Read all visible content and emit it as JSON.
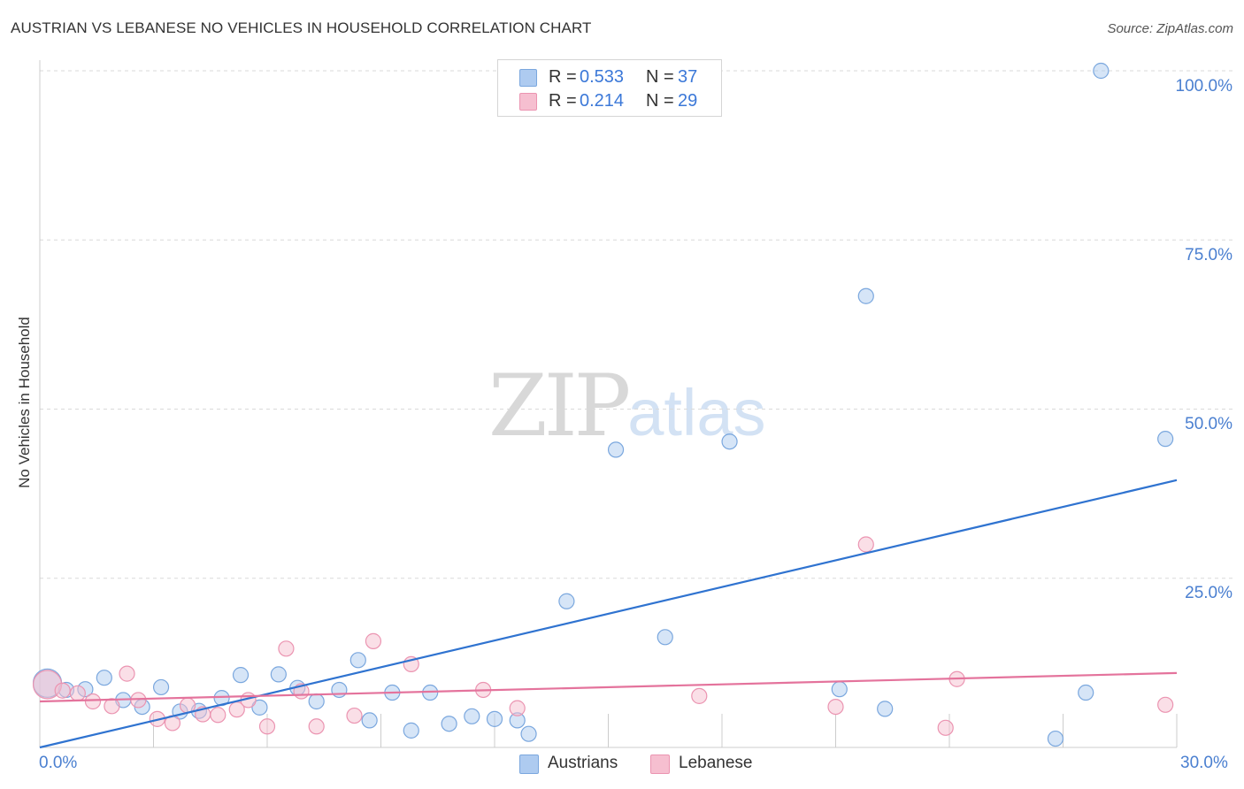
{
  "header": {
    "title": "AUSTRIAN VS LEBANESE NO VEHICLES IN HOUSEHOLD CORRELATION CHART",
    "source": "Source: ZipAtlas.com"
  },
  "watermark": {
    "zip": "ZIP",
    "atlas": "atlas"
  },
  "colors": {
    "austrians_fill": "#aecbf0",
    "austrians_stroke": "#7aa7de",
    "austrians_line": "#2f73d0",
    "lebanese_fill": "#f6bfd0",
    "lebanese_stroke": "#eb94b1",
    "lebanese_line": "#e4739c",
    "grid": "#d9d9d9",
    "tick_text": "#4a7fd0"
  },
  "legend_top": [
    {
      "r_label": "R =",
      "r_value": "0.533",
      "n_label": "N =",
      "n_value": "37"
    },
    {
      "r_label": "R =",
      "r_value": "0.214",
      "n_label": "N =",
      "n_value": "29"
    }
  ],
  "chart_data": {
    "type": "scatter",
    "title": "AUSTRIAN VS LEBANESE NO VEHICLES IN HOUSEHOLD CORRELATION CHART",
    "xlabel": "",
    "ylabel": "No Vehicles in Household",
    "xlim": [
      0,
      30
    ],
    "ylim": [
      0,
      100
    ],
    "x_tick_labels": [
      "0.0%",
      "30.0%"
    ],
    "y_ticks": [
      25,
      50,
      75,
      100
    ],
    "y_tick_labels": [
      "25.0%",
      "50.0%",
      "75.0%",
      "100.0%"
    ],
    "grid": true,
    "legend": "bottom-center",
    "series": [
      {
        "name": "Austrians",
        "r": 0.533,
        "n": 37,
        "trend": {
          "x": [
            0,
            30
          ],
          "y": [
            0,
            39.5
          ]
        },
        "points": [
          {
            "x": 0.2,
            "y": 9.5,
            "big": true
          },
          {
            "x": 0.7,
            "y": 8.5
          },
          {
            "x": 1.2,
            "y": 8.6
          },
          {
            "x": 1.7,
            "y": 10.3
          },
          {
            "x": 2.2,
            "y": 7.0
          },
          {
            "x": 2.7,
            "y": 6.0
          },
          {
            "x": 3.2,
            "y": 8.9
          },
          {
            "x": 3.7,
            "y": 5.3
          },
          {
            "x": 4.2,
            "y": 5.4
          },
          {
            "x": 4.8,
            "y": 7.3
          },
          {
            "x": 5.3,
            "y": 10.7
          },
          {
            "x": 5.8,
            "y": 5.9
          },
          {
            "x": 6.3,
            "y": 10.8
          },
          {
            "x": 6.8,
            "y": 8.8
          },
          {
            "x": 7.3,
            "y": 6.8
          },
          {
            "x": 7.9,
            "y": 8.5
          },
          {
            "x": 8.4,
            "y": 12.9
          },
          {
            "x": 8.7,
            "y": 4.0
          },
          {
            "x": 9.3,
            "y": 8.1
          },
          {
            "x": 9.8,
            "y": 2.5
          },
          {
            "x": 10.3,
            "y": 8.1
          },
          {
            "x": 10.8,
            "y": 3.5
          },
          {
            "x": 11.4,
            "y": 4.6
          },
          {
            "x": 12.0,
            "y": 4.2
          },
          {
            "x": 12.6,
            "y": 4.0
          },
          {
            "x": 12.9,
            "y": 2.0
          },
          {
            "x": 13.9,
            "y": 21.6
          },
          {
            "x": 15.2,
            "y": 44.0
          },
          {
            "x": 16.5,
            "y": 16.3
          },
          {
            "x": 18.2,
            "y": 45.2
          },
          {
            "x": 21.1,
            "y": 8.6
          },
          {
            "x": 21.8,
            "y": 66.7
          },
          {
            "x": 22.3,
            "y": 5.7
          },
          {
            "x": 26.8,
            "y": 1.3
          },
          {
            "x": 27.6,
            "y": 8.1
          },
          {
            "x": 28.0,
            "y": 100.0
          },
          {
            "x": 29.7,
            "y": 45.6
          }
        ]
      },
      {
        "name": "Lebanese",
        "r": 0.214,
        "n": 29,
        "trend": {
          "x": [
            0,
            30
          ],
          "y": [
            6.8,
            11.0
          ]
        },
        "points": [
          {
            "x": 0.2,
            "y": 9.3,
            "big": true
          },
          {
            "x": 0.6,
            "y": 8.4
          },
          {
            "x": 1.0,
            "y": 8.0
          },
          {
            "x": 1.4,
            "y": 6.8
          },
          {
            "x": 1.9,
            "y": 6.1
          },
          {
            "x": 2.3,
            "y": 10.9
          },
          {
            "x": 2.6,
            "y": 7.0
          },
          {
            "x": 3.1,
            "y": 4.2
          },
          {
            "x": 3.5,
            "y": 3.6
          },
          {
            "x": 3.9,
            "y": 6.2
          },
          {
            "x": 4.3,
            "y": 4.9
          },
          {
            "x": 4.7,
            "y": 4.8
          },
          {
            "x": 5.2,
            "y": 5.6
          },
          {
            "x": 5.5,
            "y": 7.0
          },
          {
            "x": 6.0,
            "y": 3.1
          },
          {
            "x": 6.5,
            "y": 14.6
          },
          {
            "x": 6.9,
            "y": 8.3
          },
          {
            "x": 7.3,
            "y": 3.1
          },
          {
            "x": 8.3,
            "y": 4.7
          },
          {
            "x": 8.8,
            "y": 15.7
          },
          {
            "x": 9.8,
            "y": 12.3
          },
          {
            "x": 11.7,
            "y": 8.5
          },
          {
            "x": 12.6,
            "y": 5.8
          },
          {
            "x": 17.4,
            "y": 7.6
          },
          {
            "x": 21.0,
            "y": 6.0
          },
          {
            "x": 21.8,
            "y": 30.0
          },
          {
            "x": 23.9,
            "y": 2.9
          },
          {
            "x": 24.2,
            "y": 10.1
          },
          {
            "x": 29.7,
            "y": 6.3
          }
        ]
      }
    ]
  },
  "legend_bottom": [
    {
      "label": "Austrians"
    },
    {
      "label": "Lebanese"
    }
  ]
}
